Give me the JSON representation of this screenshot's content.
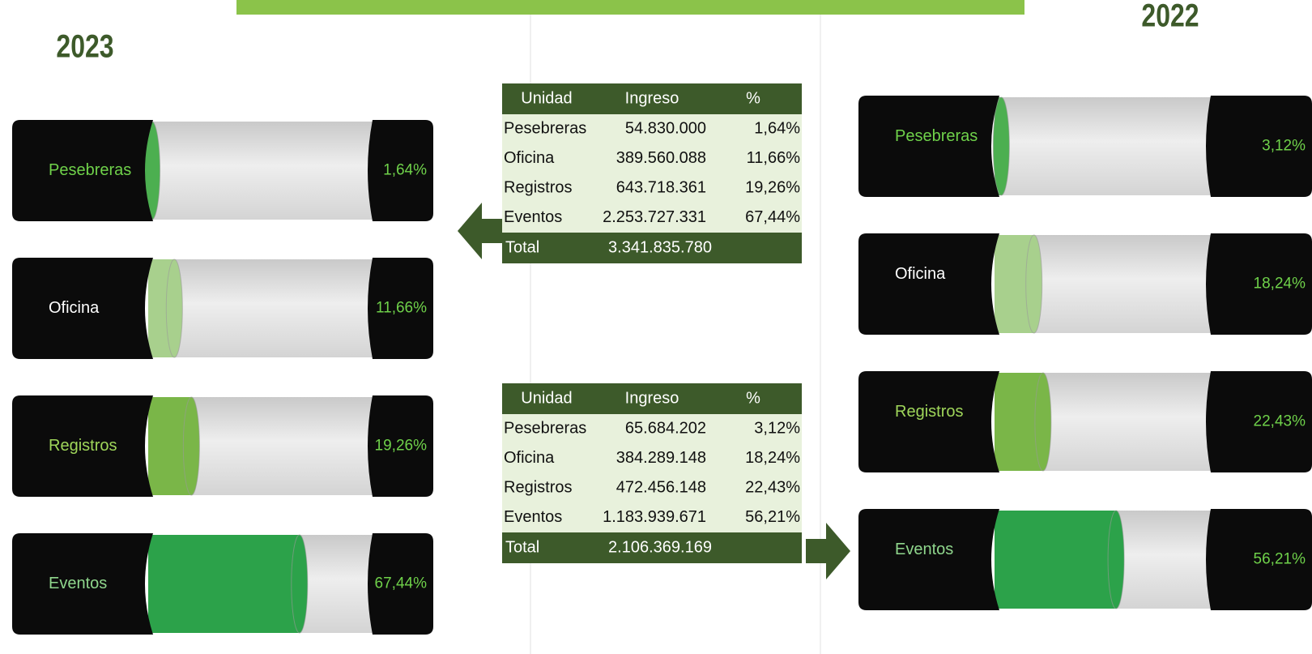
{
  "panels": [
    {
      "year": "2023",
      "bars": [
        {
          "label": "Pesebreras",
          "value": 1.64,
          "value_label": "1,64%"
        },
        {
          "label": "Oficina",
          "value": 11.66,
          "value_label": "11,66%"
        },
        {
          "label": "Registros",
          "value": 19.26,
          "value_label": "19,26%"
        },
        {
          "label": "Eventos",
          "value": 67.44,
          "value_label": "67,44%"
        }
      ]
    },
    {
      "year": "2022",
      "bars": [
        {
          "label": "Pesebreras",
          "value": 3.12,
          "value_label": "3,12%"
        },
        {
          "label": "Oficina",
          "value": 18.24,
          "value_label": "18,24%"
        },
        {
          "label": "Registros",
          "value": 22.43,
          "value_label": "22,43%"
        },
        {
          "label": "Eventos",
          "value": 56.21,
          "value_label": "56,21%"
        }
      ]
    }
  ],
  "tables": [
    {
      "header": [
        "Unidad",
        "Ingreso",
        "%"
      ],
      "rows": [
        [
          "Pesebreras",
          "54.830.000",
          "1,64%"
        ],
        [
          "Oficina",
          "389.560.088",
          "11,66%"
        ],
        [
          "Registros",
          "643.718.361",
          "19,26%"
        ],
        [
          "Eventos",
          "2.253.727.331",
          "67,44%"
        ]
      ],
      "total": [
        "Total",
        "3.341.835.780"
      ]
    },
    {
      "header": [
        "Unidad",
        "Ingreso",
        "%"
      ],
      "rows": [
        [
          "Pesebreras",
          "65.684.202",
          "3,12%"
        ],
        [
          "Oficina",
          "384.289.148",
          "18,24%"
        ],
        [
          "Registros",
          "472.456.148",
          "22,43%"
        ],
        [
          "Eventos",
          "1.183.939.671",
          "56,21%"
        ]
      ],
      "total": [
        "Total",
        "2.106.369.169"
      ]
    }
  ]
}
